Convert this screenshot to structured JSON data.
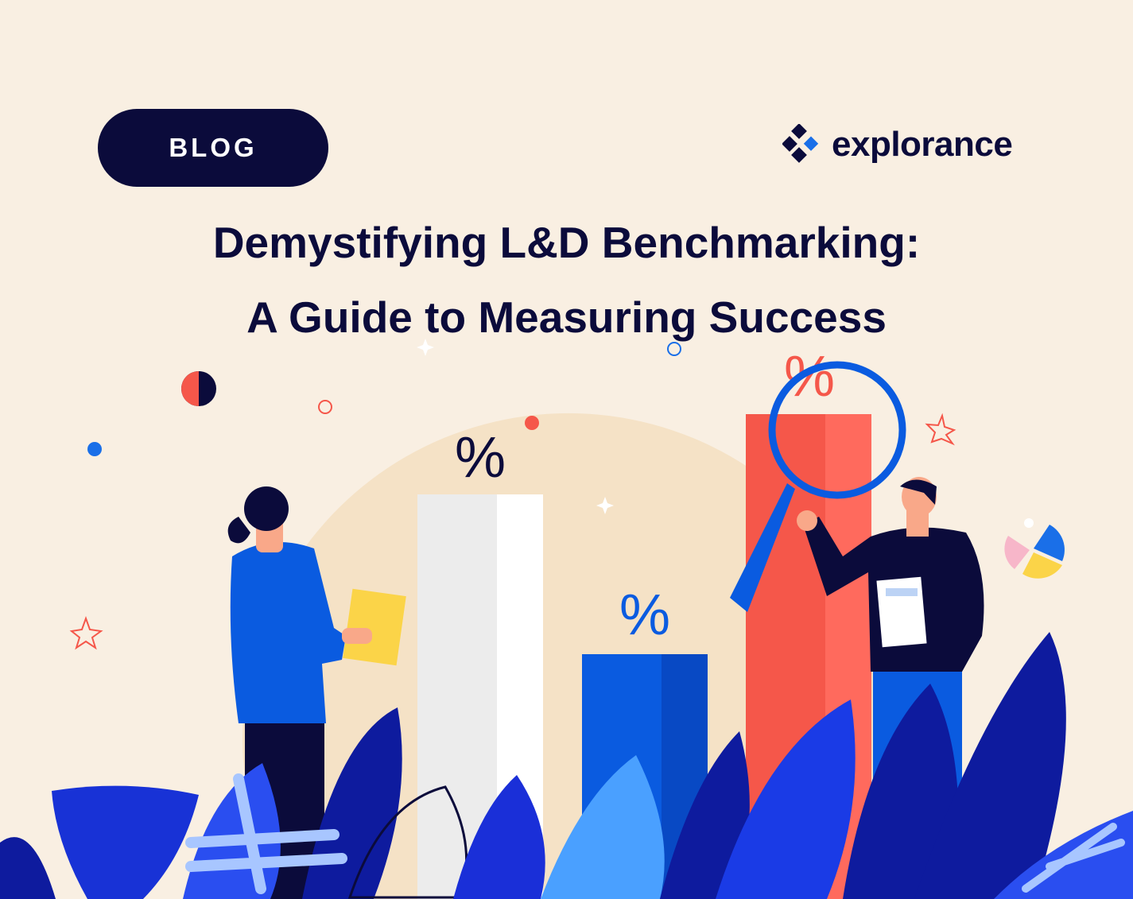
{
  "badge": {
    "label": "BLOG"
  },
  "brand": {
    "name": "explorance",
    "colors": {
      "navy": "#0b0b3b",
      "blue": "#1a6fe8"
    }
  },
  "headline": {
    "line1": "Demystifying L&D Benchmarking:",
    "line2": "A Guide to Measuring Success"
  },
  "illustration": {
    "percent_symbol": "%",
    "colors": {
      "background": "#f9efe2",
      "red": "#f5574a",
      "blue": "#0a5be0",
      "navy": "#0b0b3b",
      "yellow": "#fbd448"
    }
  }
}
